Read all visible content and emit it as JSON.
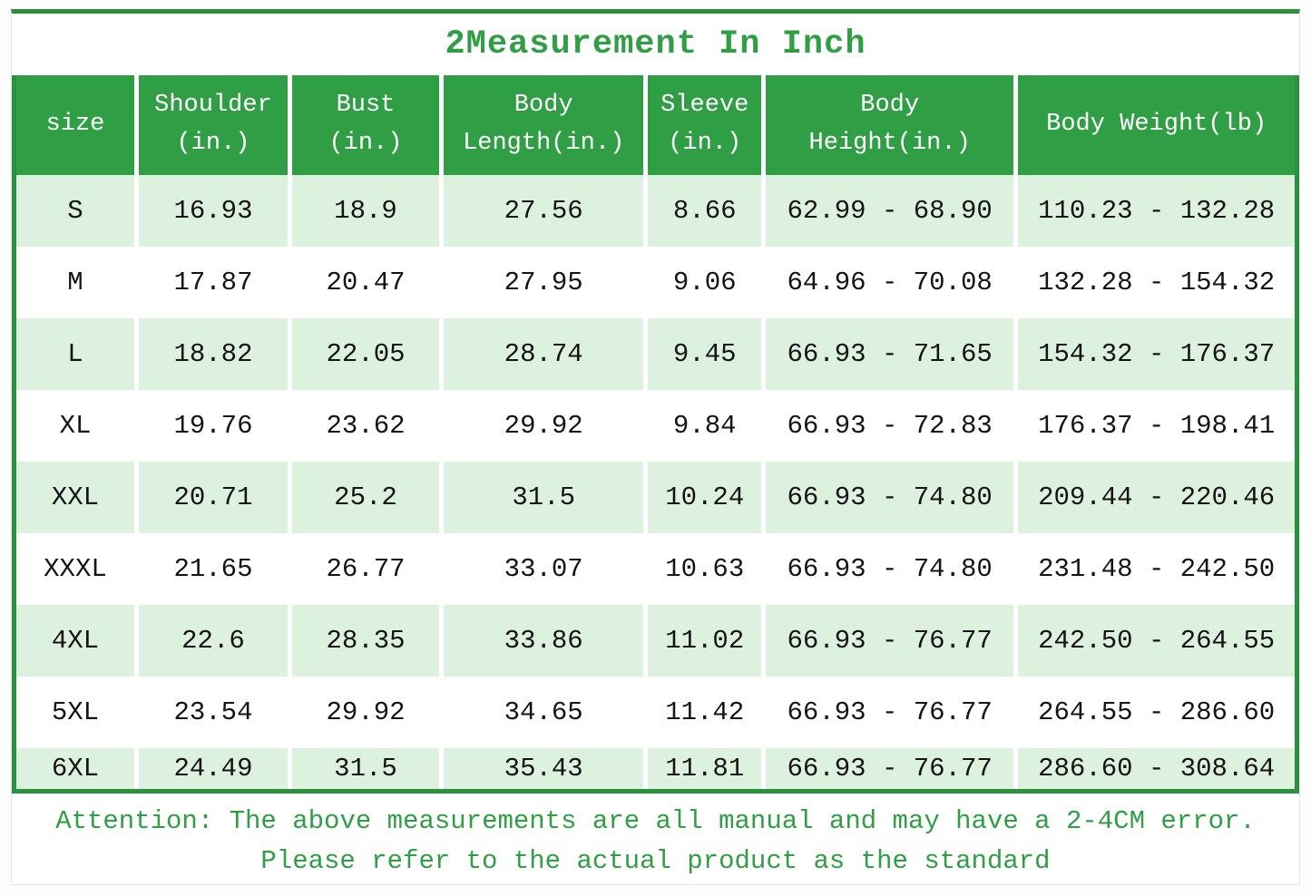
{
  "title": "2Measurement In Inch",
  "colors": {
    "green": "#2f9e44",
    "border_green": "#2a923c",
    "row_green": "#ddf1df",
    "text_dark": "#141414"
  },
  "table": {
    "columns": [
      "size",
      "Shoulder\n(in.)",
      "Bust\n(in.)",
      "Body\nLength(in.)",
      "Sleeve\n(in.)",
      "Body\nHeight(in.)",
      "Body Weight(lb)"
    ],
    "rows": [
      [
        "S",
        "16.93",
        "18.9",
        "27.56",
        "8.66",
        "62.99 - 68.90",
        "110.23 - 132.28"
      ],
      [
        "M",
        "17.87",
        "20.47",
        "27.95",
        "9.06",
        "64.96 - 70.08",
        "132.28 - 154.32"
      ],
      [
        "L",
        "18.82",
        "22.05",
        "28.74",
        "9.45",
        "66.93 - 71.65",
        "154.32 - 176.37"
      ],
      [
        "XL",
        "19.76",
        "23.62",
        "29.92",
        "9.84",
        "66.93 - 72.83",
        "176.37 - 198.41"
      ],
      [
        "XXL",
        "20.71",
        "25.2",
        "31.5",
        "10.24",
        "66.93 - 74.80",
        "209.44 - 220.46"
      ],
      [
        "XXXL",
        "21.65",
        "26.77",
        "33.07",
        "10.63",
        "66.93 - 74.80",
        "231.48 - 242.50"
      ],
      [
        "4XL",
        "22.6",
        "28.35",
        "33.86",
        "11.02",
        "66.93 - 76.77",
        "242.50 - 264.55"
      ],
      [
        "5XL",
        "23.54",
        "29.92",
        "34.65",
        "11.42",
        "66.93 - 76.77",
        "264.55 - 286.60"
      ],
      [
        "6XL",
        "24.49",
        "31.5",
        "35.43",
        "11.81",
        "66.93 - 76.77",
        "286.60 - 308.64"
      ]
    ]
  },
  "attention": {
    "line1": "Attention: The above measurements are all manual and may have a 2-4CM error.",
    "line2": "Please refer to the actual product as the standard"
  }
}
